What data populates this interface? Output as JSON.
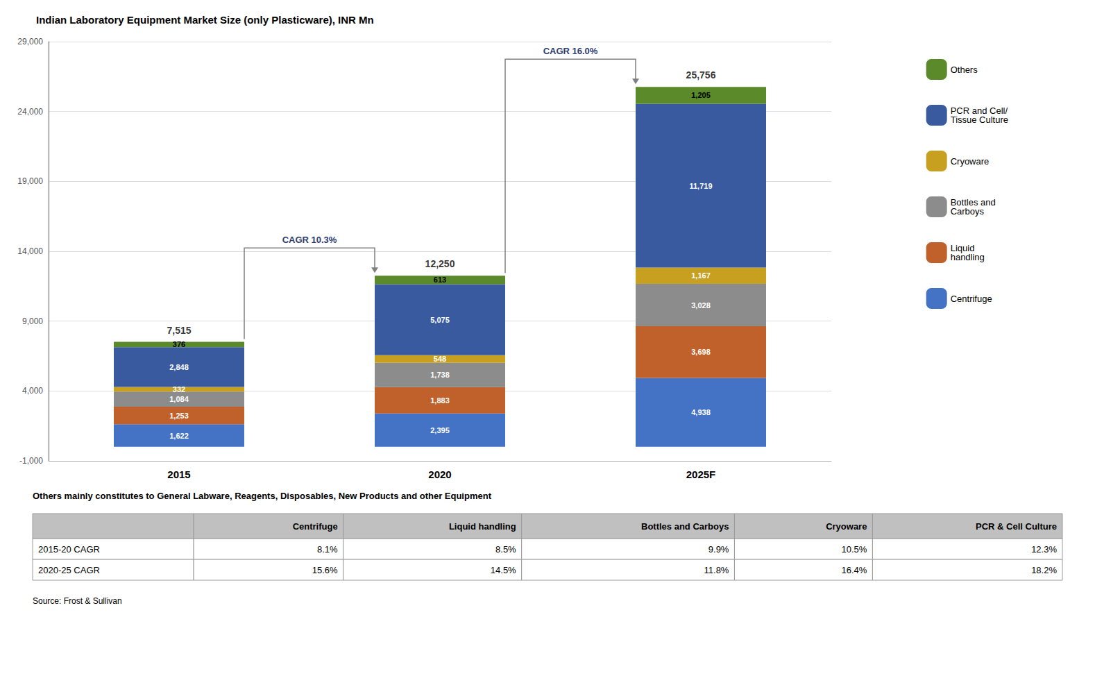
{
  "chart_data": {
    "type": "bar",
    "title": "Indian Laboratory Equipment Market Size (only Plasticware), INR Mn",
    "categories": [
      "2015",
      "2020",
      "2025F"
    ],
    "stacked": true,
    "data_labels": true,
    "grid": true,
    "legend": "right",
    "series": [
      {
        "name": "Centrifuge",
        "color": "#4472C4",
        "values": [
          1622,
          2395,
          4938
        ],
        "value_labels": [
          "1,622",
          "2,395",
          "4,938"
        ]
      },
      {
        "name": "Liquid\nhandling",
        "color": "#C0612B",
        "values": [
          1253,
          1883,
          3698
        ],
        "value_labels": [
          "1,253",
          "1,883",
          "3,698"
        ]
      },
      {
        "name": "Bottles and\nCarboys",
        "color": "#8C8C8C",
        "values": [
          1084,
          1738,
          3028
        ],
        "value_labels": [
          "1,084",
          "1,738",
          "3,028"
        ]
      },
      {
        "name": "Cryoware",
        "color": "#C8A020",
        "values": [
          332,
          548,
          1167
        ],
        "value_labels": [
          "332",
          "548",
          "1,167"
        ]
      },
      {
        "name": "PCR and Cell/\nTissue Culture",
        "color": "#3A5AA0",
        "values": [
          2848,
          5075,
          11719
        ],
        "value_labels": [
          "2,848",
          "5,075",
          "11,719"
        ]
      },
      {
        "name": "Others",
        "color": "#5A8A2A",
        "values": [
          376,
          613,
          1205
        ],
        "value_labels": [
          "376",
          "613",
          "1,205"
        ]
      }
    ],
    "totals": {
      "values": [
        7515,
        12250,
        25756
      ],
      "value_labels": [
        "7,515",
        "12,250",
        "25,756"
      ]
    },
    "ylim": [
      -1000,
      29000
    ],
    "yticks": [
      {
        "value": -1000,
        "label": "-1,000"
      },
      {
        "value": 4000,
        "label": "4,000"
      },
      {
        "value": 9000,
        "label": "9,000"
      },
      {
        "value": 14000,
        "label": "14,000"
      },
      {
        "value": 19000,
        "label": "19,000"
      },
      {
        "value": 24000,
        "label": "24,000"
      },
      {
        "value": 29000,
        "label": "29,000"
      }
    ],
    "annotations": [
      {
        "text": "CAGR 10.3%",
        "from": "2015",
        "to": "2020",
        "color": "#2E4070"
      },
      {
        "text": "CAGR 16.0%",
        "from": "2020",
        "to": "2025F",
        "color": "#2E4070"
      }
    ],
    "footer_note": "Others mainly constitutes to General Labware, Reagents, Disposables, New Products and other Equipment",
    "table": {
      "headers": [
        null,
        "Centrifuge",
        "Liquid handling",
        "Bottles and Carboys",
        "Cryoware",
        "PCR & Cell Culture"
      ],
      "rows": [
        [
          "2015-20 CAGR",
          "8.1%",
          "8.5%",
          "9.9%",
          "10.5%",
          "12.3%"
        ],
        [
          "2020-25 CAGR",
          "15.6%",
          "14.5%",
          "11.8%",
          "16.4%",
          "18.2%"
        ]
      ]
    },
    "source": "Source: Frost & Sullivan"
  }
}
